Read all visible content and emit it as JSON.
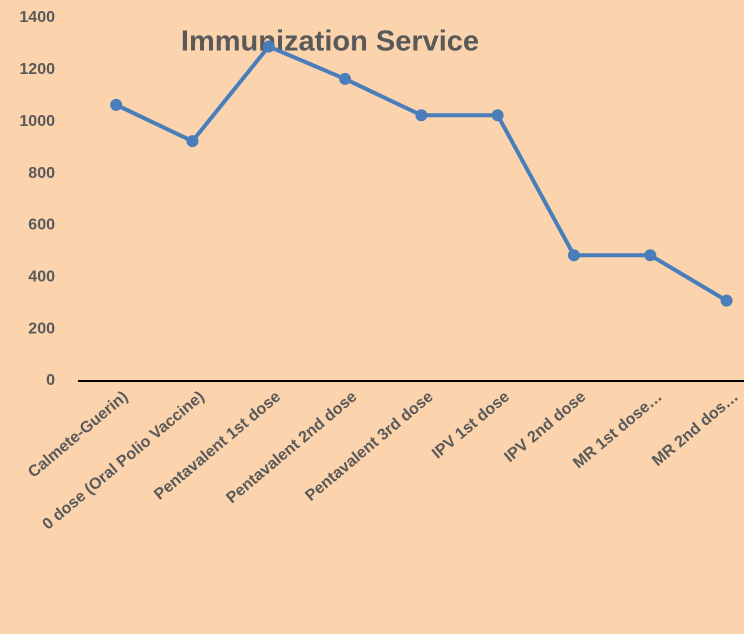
{
  "chart_data": {
    "type": "line",
    "title": "Immunization Service",
    "categories": [
      "Calmete-Guerin)",
      "0 dose (Oral Polio Vaccine)",
      "Pentavalent 1st dose",
      "Pentavalent 2nd dose",
      "Pentavalent 3rd dose",
      "IPV 1st dose",
      "IPV 2nd dose",
      "MR 1st dose…",
      "MR 2nd dos…"
    ],
    "series": [
      {
        "name": "Immunization Service",
        "color": "#4a7ebb",
        "values": [
          1065,
          925,
          1290,
          1165,
          1025,
          1025,
          485,
          485,
          310
        ]
      }
    ],
    "ylim": [
      0,
      1400
    ],
    "yticks": [
      0,
      200,
      400,
      600,
      800,
      1000,
      1200,
      1400
    ],
    "grid": false
  }
}
